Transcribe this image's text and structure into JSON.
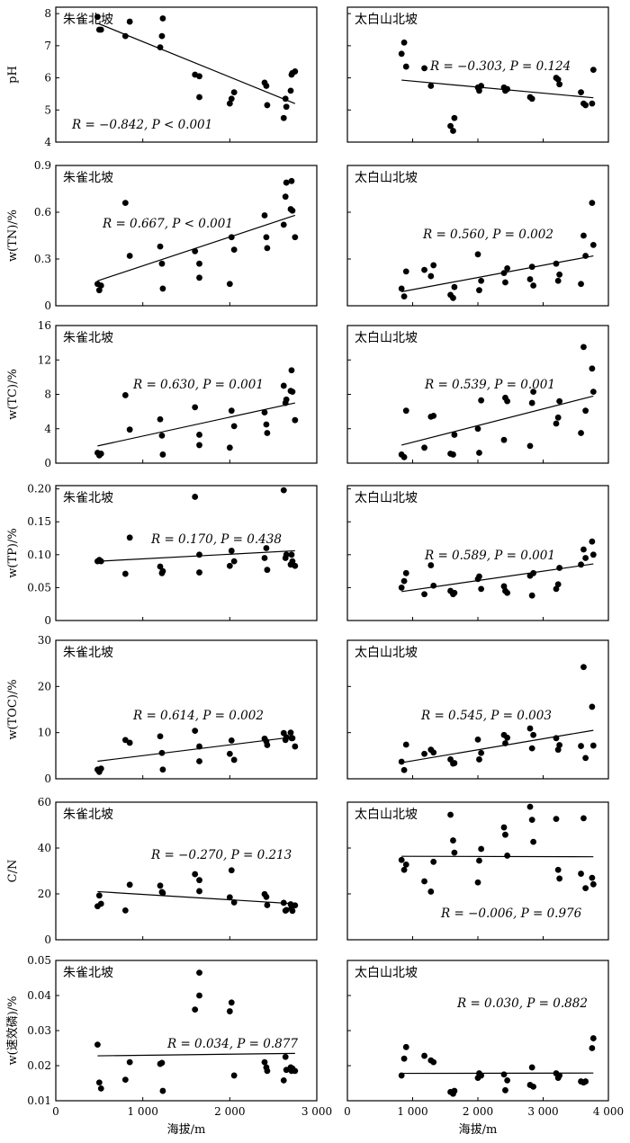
{
  "figure": {
    "x_axis_label": "海拔/m",
    "columns": [
      {
        "title": "朱雀北坡",
        "xlim": [
          0,
          3000
        ],
        "xticks": [
          0,
          1000,
          2000,
          3000
        ],
        "xtick_labels": [
          "0",
          "1 000",
          "2 000",
          "3 000"
        ]
      },
      {
        "title": "太白山北坡",
        "xlim": [
          0,
          4000
        ],
        "xticks": [
          0,
          1000,
          2000,
          3000,
          4000
        ],
        "xtick_labels": [
          "0",
          "1 000",
          "2 000",
          "3 000",
          "4 000"
        ]
      }
    ]
  },
  "chart_data": [
    {
      "type": "scatter",
      "title": "朱雀北坡",
      "ylabel": "pH",
      "xlabel": "",
      "xlim": [
        0,
        3000
      ],
      "ylim": [
        4,
        8.2
      ],
      "yticks": [
        4,
        5,
        6,
        7,
        8
      ],
      "ytick_labels": [
        "4",
        "5",
        "6",
        "7",
        "8"
      ],
      "annotation": "R = −0.842, P < 0.001",
      "x": [
        480,
        500,
        520,
        800,
        850,
        1200,
        1220,
        1230,
        1600,
        1650,
        1650,
        2000,
        2020,
        2050,
        2400,
        2420,
        2430,
        2620,
        2640,
        2650,
        2700,
        2710,
        2720,
        2750
      ],
      "y": [
        7.9,
        7.5,
        7.5,
        7.3,
        7.75,
        6.95,
        7.3,
        7.85,
        6.1,
        6.05,
        5.4,
        5.2,
        5.35,
        5.55,
        5.85,
        5.75,
        5.15,
        4.75,
        5.35,
        5.1,
        5.6,
        6.1,
        6.15,
        6.2
      ],
      "fit": {
        "x": [
          480,
          2750
        ],
        "y": [
          7.7,
          5.2
        ]
      }
    },
    {
      "type": "scatter",
      "title": "太白山北坡",
      "ylabel": "",
      "xlabel": "",
      "xlim": [
        0,
        4000
      ],
      "ylim": [
        4,
        8.2
      ],
      "annotation": "R = −0.303, P = 0.124",
      "x": [
        830,
        870,
        900,
        1180,
        1280,
        1580,
        1620,
        1640,
        2000,
        2020,
        2050,
        2400,
        2420,
        2450,
        2800,
        2830,
        3200,
        3230,
        3250,
        3580,
        3620,
        3650,
        3750,
        3770
      ],
      "y": [
        6.75,
        7.1,
        6.35,
        6.3,
        5.75,
        4.5,
        4.35,
        4.75,
        5.7,
        5.6,
        5.75,
        5.7,
        5.6,
        5.65,
        5.4,
        5.35,
        6.0,
        5.95,
        5.8,
        5.55,
        5.2,
        5.15,
        5.2,
        6.25
      ],
      "fit": {
        "x": [
          830,
          3770
        ],
        "y": [
          5.93,
          5.38
        ]
      }
    },
    {
      "type": "scatter",
      "title": "朱雀北坡",
      "ylabel": "w(TN)/%",
      "xlabel": "",
      "xlim": [
        0,
        3000
      ],
      "ylim": [
        0,
        0.9
      ],
      "yticks": [
        0,
        0.3,
        0.6,
        0.9
      ],
      "ytick_labels": [
        "0",
        "0.3",
        "0.6",
        "0.9"
      ],
      "annotation": "R = 0.667, P < 0.001",
      "x": [
        480,
        500,
        520,
        800,
        850,
        1200,
        1220,
        1230,
        1600,
        1650,
        1650,
        2000,
        2020,
        2050,
        2400,
        2420,
        2430,
        2620,
        2640,
        2650,
        2700,
        2710,
        2720,
        2750
      ],
      "y": [
        0.14,
        0.1,
        0.13,
        0.66,
        0.32,
        0.38,
        0.27,
        0.11,
        0.35,
        0.27,
        0.18,
        0.14,
        0.44,
        0.36,
        0.58,
        0.44,
        0.37,
        0.52,
        0.7,
        0.79,
        0.62,
        0.8,
        0.61,
        0.44
      ],
      "fit": {
        "x": [
          480,
          2750
        ],
        "y": [
          0.16,
          0.58
        ]
      }
    },
    {
      "type": "scatter",
      "title": "太白山北坡",
      "ylabel": "",
      "xlabel": "",
      "xlim": [
        0,
        4000
      ],
      "ylim": [
        0,
        0.9
      ],
      "annotation": "R = 0.560, P = 0.002",
      "x": [
        830,
        870,
        900,
        1180,
        1280,
        1320,
        1580,
        1620,
        1640,
        2000,
        2020,
        2050,
        2400,
        2420,
        2450,
        2800,
        2830,
        2850,
        3200,
        3230,
        3250,
        3580,
        3620,
        3650,
        3750,
        3770
      ],
      "y": [
        0.11,
        0.06,
        0.22,
        0.23,
        0.19,
        0.26,
        0.07,
        0.05,
        0.12,
        0.33,
        0.1,
        0.16,
        0.21,
        0.15,
        0.24,
        0.17,
        0.25,
        0.13,
        0.27,
        0.16,
        0.2,
        0.14,
        0.45,
        0.32,
        0.66,
        0.39
      ],
      "fit": {
        "x": [
          830,
          3770
        ],
        "y": [
          0.09,
          0.32
        ]
      }
    },
    {
      "type": "scatter",
      "title": "朱雀北坡",
      "ylabel": "w(TC)/%",
      "xlabel": "",
      "xlim": [
        0,
        3000
      ],
      "ylim": [
        0,
        16
      ],
      "yticks": [
        0,
        4,
        8,
        12,
        16
      ],
      "ytick_labels": [
        "0",
        "4",
        "8",
        "12",
        "16"
      ],
      "annotation": "R = 0.630, P = 0.001",
      "x": [
        480,
        500,
        520,
        800,
        850,
        1200,
        1220,
        1230,
        1600,
        1650,
        1650,
        2000,
        2020,
        2050,
        2400,
        2420,
        2430,
        2620,
        2640,
        2650,
        2700,
        2710,
        2720,
        2750
      ],
      "y": [
        1.2,
        0.9,
        1.1,
        7.9,
        3.9,
        5.1,
        3.2,
        1.0,
        6.5,
        3.3,
        2.1,
        1.8,
        6.1,
        4.3,
        5.9,
        4.5,
        3.5,
        9.0,
        7.0,
        7.4,
        8.4,
        10.8,
        8.3,
        5.0
      ],
      "fit": {
        "x": [
          480,
          2750
        ],
        "y": [
          2.0,
          7.0
        ]
      }
    },
    {
      "type": "scatter",
      "title": "太白山北坡",
      "ylabel": "",
      "xlabel": "",
      "xlim": [
        0,
        4000
      ],
      "ylim": [
        0,
        16
      ],
      "annotation": "R = 0.539, P = 0.001",
      "x": [
        830,
        870,
        900,
        1180,
        1280,
        1320,
        1580,
        1620,
        1640,
        2000,
        2020,
        2050,
        2400,
        2420,
        2450,
        2800,
        2830,
        2850,
        3200,
        3230,
        3250,
        3580,
        3620,
        3650,
        3750,
        3770
      ],
      "y": [
        1.0,
        0.7,
        6.1,
        1.8,
        5.4,
        5.5,
        1.1,
        1.0,
        3.3,
        4.0,
        1.2,
        7.3,
        2.7,
        7.6,
        7.2,
        2.0,
        7.0,
        8.3,
        4.6,
        5.3,
        7.2,
        3.5,
        13.5,
        6.1,
        11.0,
        8.3
      ],
      "fit": {
        "x": [
          830,
          3770
        ],
        "y": [
          2.1,
          7.8
        ]
      }
    },
    {
      "type": "scatter",
      "title": "朱雀北坡",
      "ylabel": "w(TP)/%",
      "xlabel": "",
      "xlim": [
        0,
        3000
      ],
      "ylim": [
        0,
        0.205
      ],
      "yticks": [
        0,
        0.05,
        0.1,
        0.15,
        0.2
      ],
      "ytick_labels": [
        "0",
        "0.05",
        "0.10",
        "0.15",
        "0.20"
      ],
      "annotation": "R = 0.170, P = 0.438",
      "x": [
        480,
        500,
        520,
        800,
        850,
        1200,
        1220,
        1230,
        1600,
        1650,
        1650,
        2000,
        2020,
        2050,
        2400,
        2420,
        2430,
        2620,
        2640,
        2650,
        2700,
        2710,
        2720,
        2750
      ],
      "y": [
        0.09,
        0.092,
        0.09,
        0.071,
        0.126,
        0.082,
        0.072,
        0.075,
        0.188,
        0.1,
        0.073,
        0.083,
        0.106,
        0.09,
        0.095,
        0.11,
        0.077,
        0.198,
        0.095,
        0.1,
        0.085,
        0.1,
        0.09,
        0.083
      ],
      "fit": {
        "x": [
          480,
          2750
        ],
        "y": [
          0.09,
          0.106
        ]
      }
    },
    {
      "type": "scatter",
      "title": "太白山北坡",
      "ylabel": "",
      "xlabel": "",
      "xlim": [
        0,
        4000
      ],
      "ylim": [
        0,
        0.205
      ],
      "annotation": "R = 0.589, P = 0.001",
      "x": [
        830,
        870,
        900,
        1180,
        1280,
        1320,
        1580,
        1620,
        1640,
        2000,
        2020,
        2050,
        2400,
        2420,
        2450,
        2800,
        2830,
        2850,
        3200,
        3230,
        3250,
        3580,
        3620,
        3650,
        3750,
        3770
      ],
      "y": [
        0.05,
        0.06,
        0.072,
        0.04,
        0.084,
        0.053,
        0.045,
        0.04,
        0.042,
        0.063,
        0.067,
        0.048,
        0.052,
        0.045,
        0.042,
        0.068,
        0.038,
        0.072,
        0.048,
        0.055,
        0.08,
        0.085,
        0.108,
        0.095,
        0.12,
        0.1
      ],
      "fit": {
        "x": [
          830,
          3770
        ],
        "y": [
          0.044,
          0.086
        ]
      }
    },
    {
      "type": "scatter",
      "title": "朱雀北坡",
      "ylabel": "w(TOC)/%",
      "xlabel": "",
      "xlim": [
        0,
        3000
      ],
      "ylim": [
        0,
        30
      ],
      "yticks": [
        0,
        10,
        20,
        30
      ],
      "ytick_labels": [
        "0",
        "10",
        "20",
        "30"
      ],
      "annotation": "R = 0.614, P = 0.002",
      "x": [
        480,
        500,
        520,
        800,
        850,
        1200,
        1220,
        1230,
        1600,
        1650,
        1650,
        2000,
        2020,
        2050,
        2400,
        2420,
        2430,
        2620,
        2640,
        2650,
        2700,
        2710,
        2720,
        2750
      ],
      "y": [
        2.0,
        1.5,
        2.2,
        8.4,
        7.8,
        9.2,
        5.6,
        2.0,
        10.4,
        7.0,
        3.8,
        5.4,
        8.3,
        4.1,
        8.7,
        8.1,
        7.3,
        9.9,
        8.4,
        9.0,
        10.0,
        8.8,
        8.8,
        7.0
      ],
      "fit": {
        "x": [
          480,
          2750
        ],
        "y": [
          3.8,
          9.1
        ]
      }
    },
    {
      "type": "scatter",
      "title": "太白山北坡",
      "ylabel": "",
      "xlabel": "",
      "xlim": [
        0,
        4000
      ],
      "ylim": [
        0,
        30
      ],
      "annotation": "R = 0.545, P = 0.003",
      "x": [
        830,
        870,
        900,
        1180,
        1280,
        1320,
        1580,
        1620,
        1640,
        2000,
        2020,
        2050,
        2400,
        2420,
        2450,
        2800,
        2830,
        2850,
        3200,
        3230,
        3250,
        3580,
        3620,
        3650,
        3750,
        3770
      ],
      "y": [
        3.7,
        1.9,
        7.4,
        5.4,
        6.3,
        5.7,
        4.2,
        3.3,
        3.4,
        8.5,
        4.2,
        5.6,
        9.5,
        7.7,
        8.9,
        10.9,
        6.6,
        9.5,
        8.8,
        6.3,
        7.3,
        7.1,
        24.2,
        4.5,
        15.6,
        7.2
      ],
      "fit": {
        "x": [
          830,
          3770
        ],
        "y": [
          3.5,
          10.5
        ]
      }
    },
    {
      "type": "scatter",
      "title": "朱雀北坡",
      "ylabel": "C/N",
      "xlabel": "",
      "xlim": [
        0,
        3000
      ],
      "ylim": [
        0,
        60
      ],
      "yticks": [
        0,
        20,
        40,
        60
      ],
      "ytick_labels": [
        "0",
        "20",
        "40",
        "60"
      ],
      "annotation": "R = −0.270, P = 0.213",
      "x": [
        480,
        500,
        520,
        800,
        850,
        1200,
        1220,
        1230,
        1600,
        1650,
        1650,
        2000,
        2020,
        2050,
        2400,
        2420,
        2430,
        2620,
        2640,
        2650,
        2700,
        2710,
        2720,
        2750
      ],
      "y": [
        14.6,
        19.3,
        15.7,
        12.8,
        24.0,
        23.6,
        20.8,
        20.4,
        28.6,
        26.0,
        21.2,
        18.5,
        30.3,
        16.3,
        19.9,
        18.7,
        15.1,
        16.1,
        12.7,
        13.0,
        15.5,
        14.0,
        12.6,
        15.0
      ],
      "fit": {
        "x": [
          480,
          2750
        ],
        "y": [
          21.0,
          15.7
        ]
      }
    },
    {
      "type": "scatter",
      "title": "太白山北坡",
      "ylabel": "",
      "xlabel": "",
      "xlim": [
        0,
        4000
      ],
      "ylim": [
        0,
        60
      ],
      "annotation": "R = −0.006, P = 0.976",
      "x": [
        830,
        870,
        900,
        1180,
        1280,
        1320,
        1580,
        1620,
        1640,
        2000,
        2020,
        2050,
        2400,
        2420,
        2450,
        2800,
        2830,
        2850,
        3200,
        3230,
        3250,
        3580,
        3620,
        3650,
        3750,
        3770
      ],
      "y": [
        34.8,
        30.5,
        32.8,
        25.5,
        21.0,
        34.0,
        54.5,
        43.3,
        38.0,
        25.0,
        34.5,
        39.6,
        49.0,
        45.8,
        36.7,
        58.0,
        52.3,
        42.7,
        52.7,
        30.5,
        26.7,
        28.8,
        53.0,
        22.5,
        27.0,
        24.2
      ],
      "fit": {
        "x": [
          830,
          3770
        ],
        "y": [
          36.4,
          36.2
        ]
      }
    },
    {
      "type": "scatter",
      "title": "朱雀北坡",
      "ylabel": "w(速效磷)/%",
      "xlabel": "海拔/m",
      "xlim": [
        0,
        3000
      ],
      "ylim": [
        0.01,
        0.05
      ],
      "yticks": [
        0.01,
        0.02,
        0.03,
        0.04,
        0.05
      ],
      "ytick_labels": [
        "0.01",
        "0.02",
        "0.03",
        "0.04",
        "0.05"
      ],
      "annotation": "R = 0.034, P = 0.877",
      "x": [
        480,
        500,
        520,
        800,
        850,
        1200,
        1220,
        1230,
        1600,
        1650,
        1650,
        2000,
        2020,
        2050,
        2400,
        2420,
        2430,
        2620,
        2640,
        2650,
        2700,
        2710,
        2720,
        2750
      ],
      "y": [
        0.026,
        0.0152,
        0.0135,
        0.016,
        0.021,
        0.0205,
        0.0208,
        0.0128,
        0.036,
        0.0465,
        0.04,
        0.0355,
        0.038,
        0.0172,
        0.021,
        0.0195,
        0.0185,
        0.0158,
        0.0225,
        0.0188,
        0.0195,
        0.0185,
        0.0192,
        0.0185
      ],
      "fit": {
        "x": [
          480,
          2750
        ],
        "y": [
          0.0228,
          0.0235
        ]
      }
    },
    {
      "type": "scatter",
      "title": "太白山北坡",
      "ylabel": "",
      "xlabel": "海拔/m",
      "xlim": [
        0,
        4000
      ],
      "ylim": [
        0.01,
        0.05
      ],
      "annotation": "R = 0.030, P = 0.882",
      "x": [
        830,
        870,
        900,
        1180,
        1280,
        1320,
        1580,
        1620,
        1640,
        2000,
        2020,
        2050,
        2400,
        2420,
        2450,
        2800,
        2830,
        2850,
        3200,
        3230,
        3250,
        3580,
        3620,
        3650,
        3750,
        3770
      ],
      "y": [
        0.0172,
        0.022,
        0.0253,
        0.0228,
        0.0215,
        0.021,
        0.0125,
        0.012,
        0.0128,
        0.0165,
        0.0178,
        0.0172,
        0.0175,
        0.013,
        0.0158,
        0.0145,
        0.0195,
        0.014,
        0.0178,
        0.0165,
        0.0172,
        0.0155,
        0.0152,
        0.0155,
        0.025,
        0.0278
      ],
      "fit": {
        "x": [
          830,
          3770
        ],
        "y": [
          0.0178,
          0.0179
        ]
      }
    }
  ]
}
